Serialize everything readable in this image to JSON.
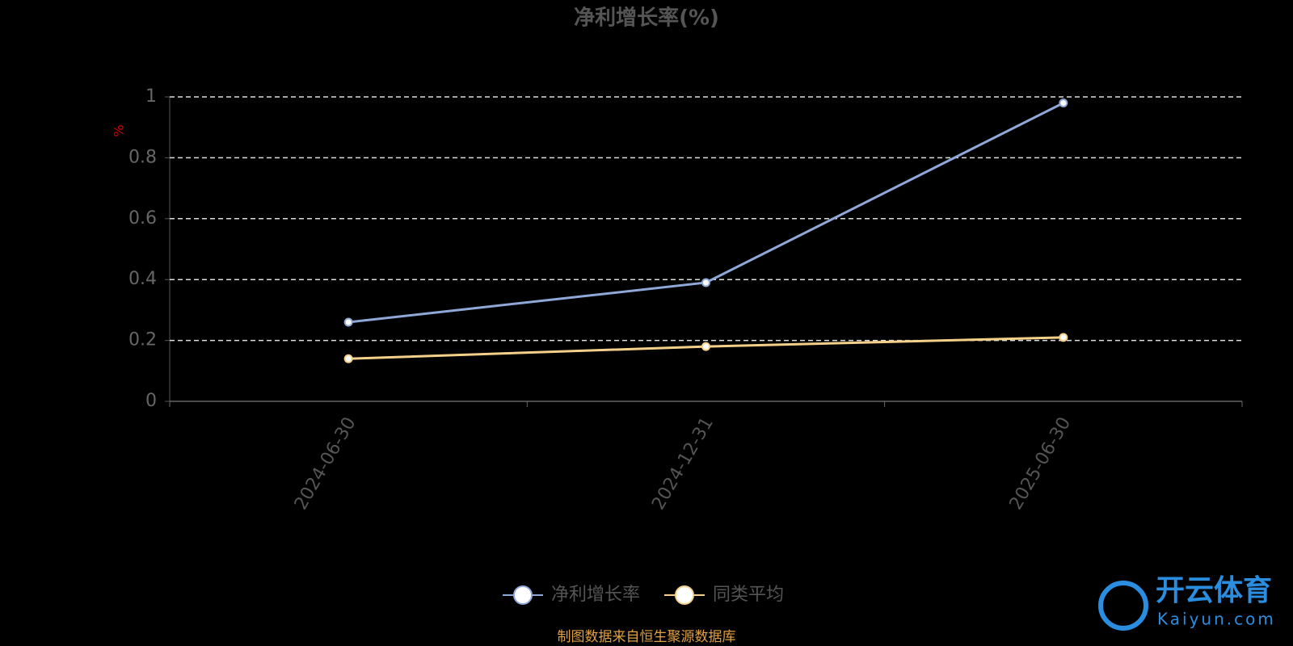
{
  "chart_data": {
    "type": "line",
    "title": "净利增长率(%)",
    "y_label": "%",
    "categories": [
      "2024-06-30",
      "2024-12-31",
      "2025-06-30"
    ],
    "series": [
      {
        "name": "净利增长率",
        "color": "#8fa8d8",
        "values": [
          0.26,
          0.39,
          0.98
        ]
      },
      {
        "name": "同类平均",
        "color": "#f5d08a",
        "values": [
          0.14,
          0.18,
          0.21
        ]
      }
    ],
    "ylim": [
      0,
      1
    ],
    "yticks": [
      0,
      0.2,
      0.4,
      0.6,
      0.8,
      1
    ],
    "grid": true,
    "source": "制图数据来自恒生聚源数据库",
    "watermark": {
      "name": "开云体育",
      "site": "Kaiyun.com"
    }
  }
}
